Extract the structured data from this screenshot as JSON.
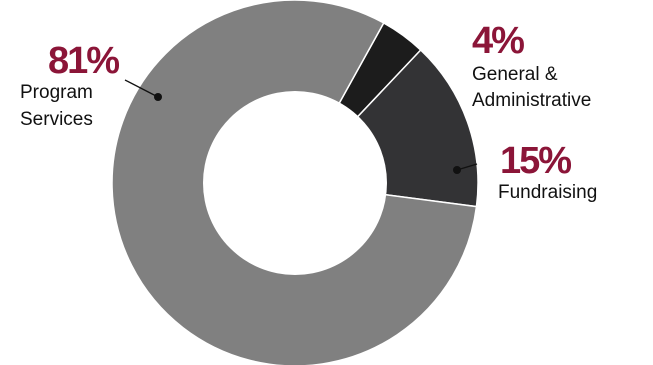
{
  "chart_data": {
    "type": "pie",
    "donut": true,
    "slices": [
      {
        "name": "Program Services",
        "value": 81,
        "percent_label": "81%",
        "label_lines": [
          "Program",
          "Services"
        ],
        "color": "#808080"
      },
      {
        "name": "General & Administrative",
        "value": 4,
        "percent_label": "4%",
        "label_lines": [
          "General &",
          "Administrative"
        ],
        "color": "#1c1c1c"
      },
      {
        "name": "Fundraising",
        "value": 15,
        "percent_label": "15%",
        "label_lines": [
          "Fundraising"
        ],
        "color": "#333335"
      }
    ],
    "colors": {
      "percent_text": "#8b1538",
      "label_text": "#111111",
      "separator": "#ffffff"
    }
  }
}
